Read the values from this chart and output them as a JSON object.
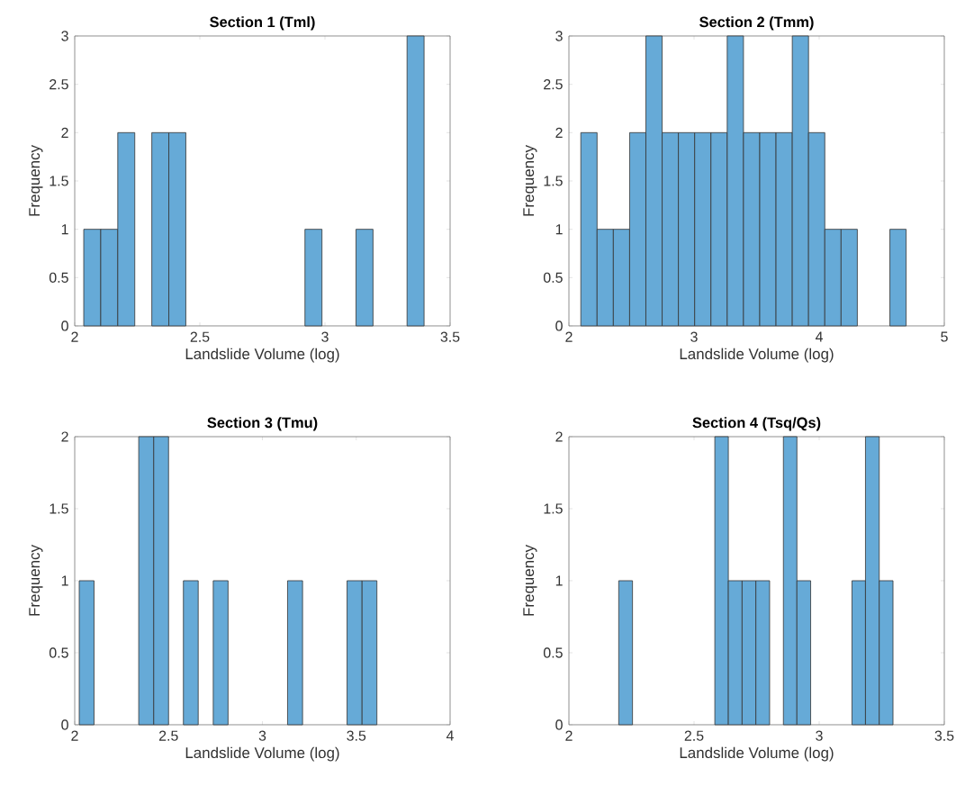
{
  "chart_data": [
    {
      "type": "histogram",
      "title": "Section 1 (Tml)",
      "xlabel": "Landslide Volume (log)",
      "ylabel": "Frequency",
      "color": "#66aad7",
      "bins": [
        2.036,
        2.104,
        2.172,
        2.24,
        2.308,
        2.376,
        2.444,
        2.512,
        2.58,
        2.648,
        2.716,
        2.784,
        2.852,
        2.92,
        2.988,
        3.056,
        3.124,
        3.192,
        3.26,
        3.328,
        3.396
      ],
      "values": [
        1,
        1,
        2,
        0,
        2,
        2,
        0,
        0,
        0,
        0,
        0,
        0,
        0,
        1,
        0,
        0,
        1,
        0,
        0,
        3
      ],
      "xlim": [
        2,
        3.5
      ],
      "xticks": [
        2,
        2.5,
        3,
        3.5
      ],
      "ylim": [
        0,
        3
      ],
      "yticks": [
        0,
        0.5,
        1,
        1.5,
        2,
        2.5,
        3
      ]
    },
    {
      "type": "histogram",
      "title": "Section 2 (Tmm)",
      "xlabel": "Landslide Volume (log)",
      "ylabel": "Frequency",
      "color": "#66aad7",
      "bins": [
        2.095,
        2.225,
        2.355,
        2.485,
        2.615,
        2.745,
        2.875,
        3.005,
        3.135,
        3.265,
        3.395,
        3.525,
        3.655,
        3.785,
        3.915,
        4.045,
        4.175,
        4.305,
        4.435,
        4.565,
        4.695
      ],
      "values": [
        2,
        1,
        1,
        2,
        3,
        2,
        2,
        2,
        2,
        3,
        2,
        2,
        2,
        3,
        2,
        1,
        1,
        0,
        0,
        1
      ],
      "xlim": [
        2,
        5
      ],
      "xticks": [
        2,
        3,
        4,
        5
      ],
      "ylim": [
        0,
        3
      ],
      "yticks": [
        0,
        0.5,
        1,
        1.5,
        2,
        2.5,
        3
      ]
    },
    {
      "type": "histogram",
      "title": "Section 3 (Tmu)",
      "xlabel": "Landslide Volume (log)",
      "ylabel": "Frequency",
      "color": "#66aad7",
      "bins": [
        2.024,
        2.103,
        2.183,
        2.262,
        2.341,
        2.421,
        2.5,
        2.579,
        2.658,
        2.738,
        2.817,
        2.896,
        2.976,
        3.055,
        3.134,
        3.214,
        3.293,
        3.372,
        3.451,
        3.531,
        3.61
      ],
      "values": [
        1,
        0,
        0,
        0,
        2,
        2,
        0,
        1,
        0,
        1,
        0,
        0,
        0,
        0,
        1,
        0,
        0,
        0,
        1,
        1
      ],
      "xlim": [
        2,
        4
      ],
      "xticks": [
        2,
        2.5,
        3,
        3.5,
        4
      ],
      "ylim": [
        0,
        2
      ],
      "yticks": [
        0,
        0.5,
        1,
        1.5,
        2
      ]
    },
    {
      "type": "histogram",
      "title": "Section 4 (Tsq/Qs)",
      "xlabel": "Landslide Volume (log)",
      "ylabel": "Frequency",
      "color": "#66aad7",
      "bins": [
        2.199,
        2.254,
        2.309,
        2.363,
        2.418,
        2.473,
        2.528,
        2.583,
        2.637,
        2.692,
        2.747,
        2.802,
        2.857,
        2.911,
        2.966,
        3.021,
        3.076,
        3.131,
        3.185,
        3.24,
        3.295
      ],
      "values": [
        1,
        0,
        0,
        0,
        0,
        0,
        0,
        2,
        1,
        1,
        1,
        0,
        2,
        1,
        0,
        0,
        0,
        1,
        2,
        1
      ],
      "xlim": [
        2,
        3.5
      ],
      "xticks": [
        2,
        2.5,
        3,
        3.5
      ],
      "ylim": [
        0,
        2
      ],
      "yticks": [
        0,
        0.5,
        1,
        1.5,
        2
      ]
    }
  ]
}
